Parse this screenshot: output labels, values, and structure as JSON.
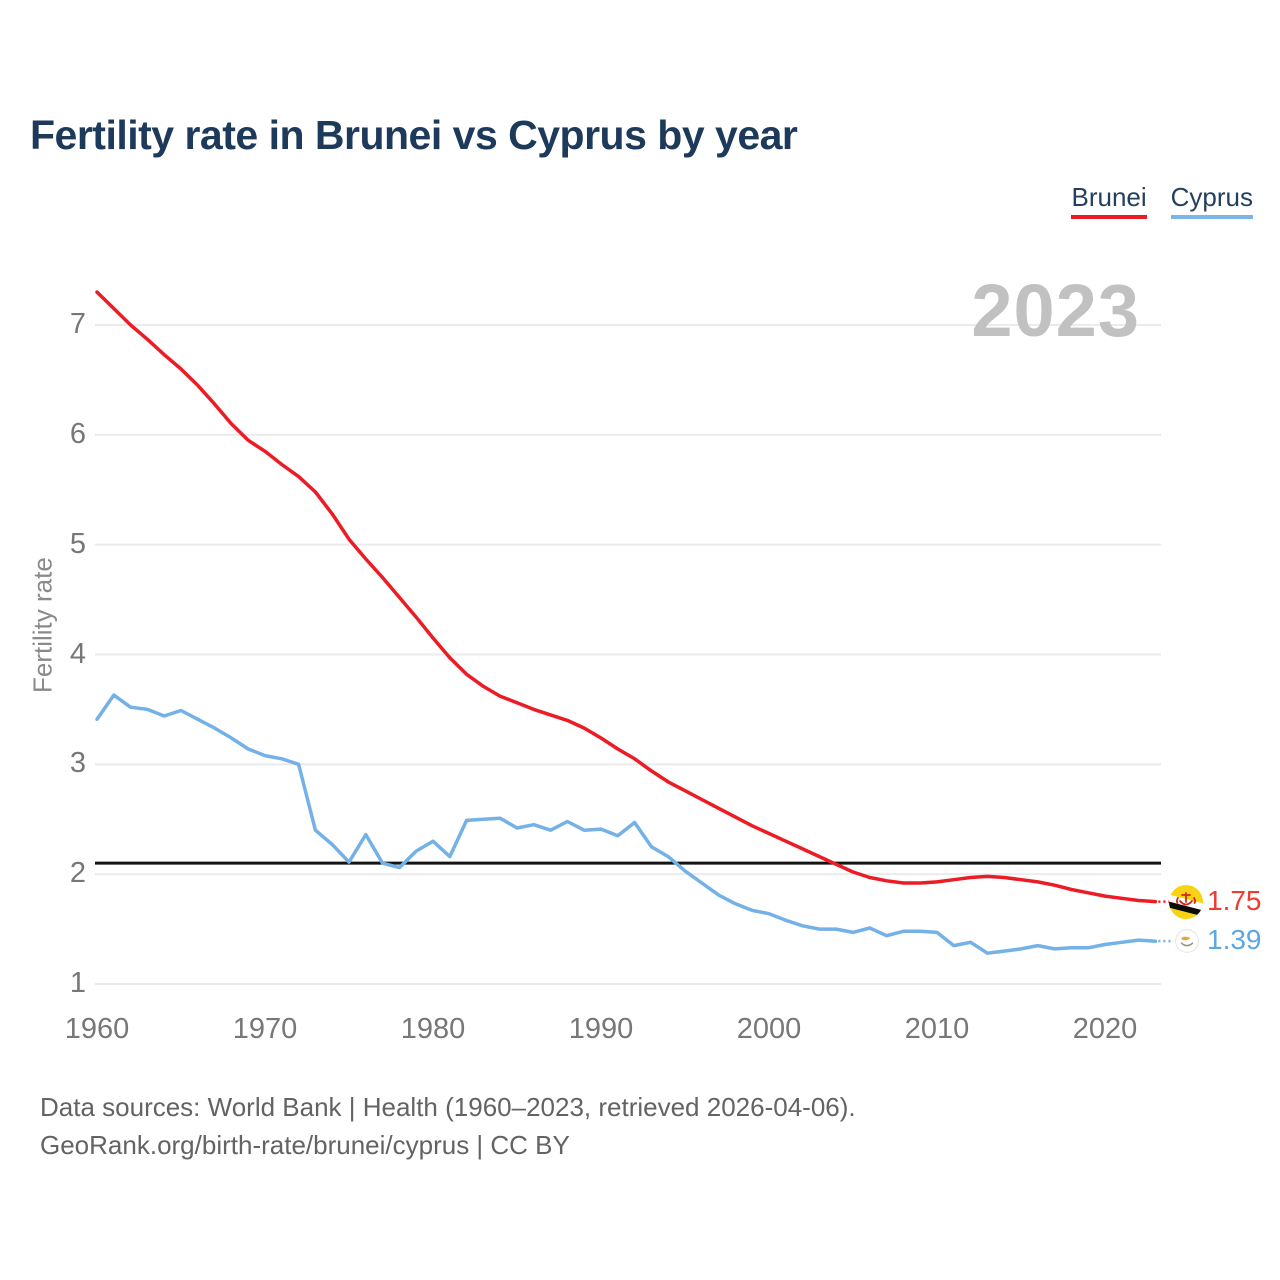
{
  "title": "Fertility rate in Brunei vs Cyprus by year",
  "legend": {
    "items": [
      {
        "label": "Brunei",
        "color": "#ed1c24"
      },
      {
        "label": "Cyprus",
        "color": "#7cb5e8"
      }
    ]
  },
  "watermark": "2023",
  "y_axis": {
    "title": "Fertility rate",
    "ticks": [
      7,
      6,
      5,
      4,
      3,
      2,
      1
    ]
  },
  "x_axis": {
    "ticks": [
      1960,
      1970,
      1980,
      1990,
      2000,
      2010,
      2020
    ]
  },
  "reference_line": {
    "value": 2.1,
    "color": "#141414"
  },
  "end_labels": {
    "brunei": {
      "value": "1.75",
      "color": "#f03b31"
    },
    "cyprus": {
      "value": "1.39",
      "color": "#5ea7e3"
    }
  },
  "footer": {
    "line1": "Data sources: World Bank | Health (1960–2023, retrieved 2026-04-06).",
    "line2": "GeoRank.org/birth-rate/brunei/cyprus | CC BY"
  },
  "chart_data": {
    "type": "line",
    "title": "Fertility rate in Brunei vs Cyprus by year",
    "xlabel": "",
    "ylabel": "Fertility rate",
    "xlim": [
      1958.7,
      2024.5
    ],
    "ylim": [
      0.85,
      7.45
    ],
    "grid": "horizontal",
    "legend_position": "top-right",
    "annotations": {
      "replacement_fertility_line": 2.1,
      "year_watermark": "2023",
      "end_value_labels": {
        "Brunei": 1.75,
        "Cyprus": 1.39
      }
    },
    "x": [
      1960,
      1961,
      1962,
      1963,
      1964,
      1965,
      1966,
      1967,
      1968,
      1969,
      1970,
      1971,
      1972,
      1973,
      1974,
      1975,
      1976,
      1977,
      1978,
      1979,
      1980,
      1981,
      1982,
      1983,
      1984,
      1985,
      1986,
      1987,
      1988,
      1989,
      1990,
      1991,
      1992,
      1993,
      1994,
      1995,
      1996,
      1997,
      1998,
      1999,
      2000,
      2001,
      2002,
      2003,
      2004,
      2005,
      2006,
      2007,
      2008,
      2009,
      2010,
      2011,
      2012,
      2013,
      2014,
      2015,
      2016,
      2017,
      2018,
      2019,
      2020,
      2021,
      2022,
      2023
    ],
    "series": [
      {
        "name": "Brunei",
        "color": "#ed1c24",
        "values": [
          7.3,
          7.15,
          7.0,
          6.87,
          6.73,
          6.6,
          6.45,
          6.28,
          6.1,
          5.95,
          5.85,
          5.73,
          5.62,
          5.48,
          5.28,
          5.05,
          4.87,
          4.7,
          4.52,
          4.34,
          4.15,
          3.97,
          3.82,
          3.71,
          3.62,
          3.56,
          3.5,
          3.45,
          3.4,
          3.33,
          3.24,
          3.14,
          3.05,
          2.94,
          2.84,
          2.76,
          2.68,
          2.6,
          2.52,
          2.44,
          2.37,
          2.3,
          2.23,
          2.16,
          2.09,
          2.02,
          1.97,
          1.94,
          1.92,
          1.92,
          1.93,
          1.95,
          1.97,
          1.98,
          1.97,
          1.95,
          1.93,
          1.9,
          1.86,
          1.83,
          1.8,
          1.78,
          1.76,
          1.75
        ]
      },
      {
        "name": "Cyprus",
        "color": "#73b1e7",
        "values": [
          3.41,
          3.63,
          3.52,
          3.5,
          3.44,
          3.49,
          3.41,
          3.33,
          3.24,
          3.14,
          3.08,
          3.05,
          3.0,
          2.4,
          2.27,
          2.11,
          2.36,
          2.1,
          2.06,
          2.21,
          2.3,
          2.16,
          2.49,
          2.5,
          2.51,
          2.42,
          2.45,
          2.4,
          2.48,
          2.4,
          2.41,
          2.35,
          2.47,
          2.25,
          2.16,
          2.03,
          1.92,
          1.81,
          1.73,
          1.67,
          1.64,
          1.58,
          1.53,
          1.5,
          1.5,
          1.47,
          1.51,
          1.44,
          1.48,
          1.48,
          1.47,
          1.35,
          1.38,
          1.28,
          1.3,
          1.32,
          1.35,
          1.32,
          1.33,
          1.33,
          1.36,
          1.38,
          1.4,
          1.39
        ]
      }
    ]
  }
}
